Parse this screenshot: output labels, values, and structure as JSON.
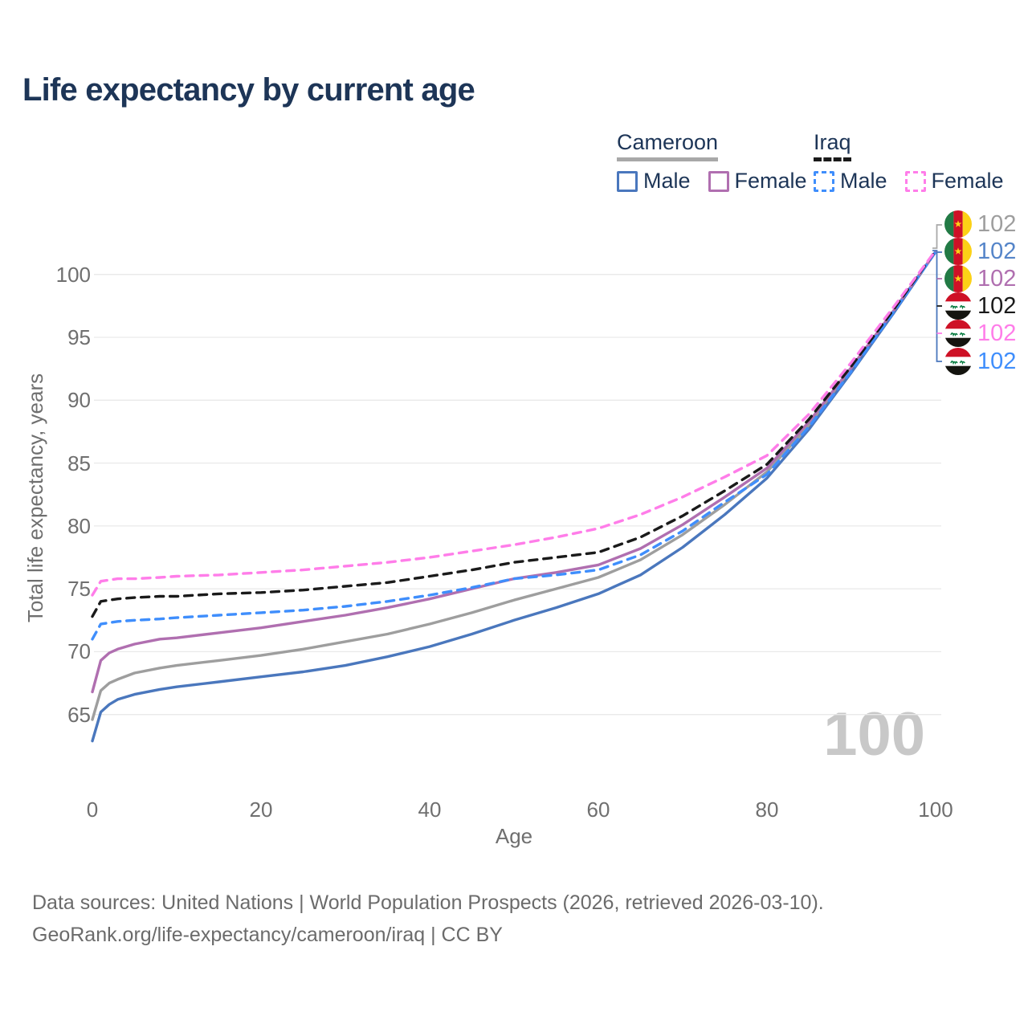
{
  "title": "Life expectancy by current age",
  "legend": {
    "groups": [
      {
        "label": "Cameroon",
        "underline_style": "solid",
        "entries": [
          {
            "label": "Male"
          },
          {
            "label": "Female"
          }
        ]
      },
      {
        "label": "Iraq",
        "underline_style": "dashed",
        "entries": [
          {
            "label": "Male"
          },
          {
            "label": "Female"
          }
        ]
      }
    ]
  },
  "colors": {
    "cameroon_total": "#9e9e9e",
    "cameroon_male": "#4a77bd",
    "cameroon_female": "#b06fb0",
    "iraq_total": "#1a1a1a",
    "iraq_male": "#3f8efc",
    "iraq_female": "#ff7de9",
    "title_text": "#1d3557",
    "axis_text": "#6f6f6f",
    "gridline": "#e9e9e9",
    "watermark": "#c8c8c8"
  },
  "age_indicator": "100",
  "end_labels": [
    {
      "country": "cameroon",
      "series": "Cameroon total",
      "value": "102",
      "color": "#9e9e9e"
    },
    {
      "country": "cameroon",
      "series": "Cameroon male",
      "value": "102",
      "color": "#5585c9"
    },
    {
      "country": "cameroon",
      "series": "Cameroon female",
      "value": "102",
      "color": "#b06fb0"
    },
    {
      "country": "iraq",
      "series": "Iraq total",
      "value": "102",
      "color": "#1a1a1a"
    },
    {
      "country": "iraq",
      "series": "Iraq female",
      "value": "102",
      "color": "#ff7de9"
    },
    {
      "country": "iraq",
      "series": "Iraq male",
      "value": "102",
      "color": "#3f8efc"
    }
  ],
  "footer": {
    "line1": "Data sources: United Nations | World Population Prospects (2026, retrieved 2026-03-10).",
    "line2": "GeoRank.org/life-expectancy/cameroon/iraq | CC BY"
  },
  "chart_data": {
    "type": "line",
    "title": "Life expectancy by current age",
    "xlabel": "Age",
    "ylabel": "Total life expectancy, years",
    "xticks": [
      0,
      20,
      40,
      60,
      80,
      100
    ],
    "yticks": [
      100,
      95,
      90,
      85,
      80,
      75,
      70,
      65
    ],
    "xlim": [
      0,
      100
    ],
    "ylim": [
      61.5,
      103.5
    ],
    "grid": "horizontal-only",
    "legend_position": "top-right",
    "x": [
      0,
      1,
      2,
      3,
      5,
      8,
      10,
      15,
      20,
      25,
      30,
      35,
      40,
      45,
      50,
      55,
      60,
      65,
      70,
      75,
      80,
      85,
      90,
      95,
      100
    ],
    "series": [
      {
        "id": "cameroon-total",
        "name": "Cameroon (both sexes)",
        "country": "Cameroon",
        "sex": "total",
        "style": "solid",
        "color": "#9e9e9e",
        "y": [
          64.6,
          66.9,
          67.5,
          67.8,
          68.3,
          68.7,
          68.9,
          69.3,
          69.7,
          70.2,
          70.8,
          71.4,
          72.2,
          73.1,
          74.1,
          75.0,
          75.9,
          77.3,
          79.3,
          81.7,
          84.3,
          88.0,
          92.4,
          97.0,
          101.8
        ]
      },
      {
        "id": "cameroon-male",
        "name": "Cameroon Male",
        "country": "Cameroon",
        "sex": "male",
        "style": "solid",
        "color": "#4a77bd",
        "y": [
          62.9,
          65.2,
          65.8,
          66.2,
          66.6,
          67.0,
          67.2,
          67.6,
          68.0,
          68.4,
          68.9,
          69.6,
          70.4,
          71.4,
          72.5,
          73.5,
          74.6,
          76.1,
          78.3,
          80.9,
          83.8,
          87.7,
          92.2,
          96.9,
          101.8
        ]
      },
      {
        "id": "cameroon-female",
        "name": "Cameroon Female",
        "country": "Cameroon",
        "sex": "female",
        "style": "solid",
        "color": "#b06fb0",
        "y": [
          66.8,
          69.3,
          69.9,
          70.2,
          70.6,
          71.0,
          71.1,
          71.5,
          71.9,
          72.4,
          72.9,
          73.5,
          74.2,
          75.0,
          75.8,
          76.3,
          76.9,
          78.2,
          80.1,
          82.3,
          84.6,
          88.3,
          92.6,
          97.1,
          101.8
        ]
      },
      {
        "id": "iraq-male",
        "name": "Iraq Male",
        "country": "Iraq",
        "sex": "male",
        "style": "dashed",
        "color": "#3f8efc",
        "y": [
          71.0,
          72.2,
          72.3,
          72.4,
          72.5,
          72.6,
          72.7,
          72.9,
          73.1,
          73.3,
          73.6,
          74.0,
          74.5,
          75.1,
          75.8,
          76.1,
          76.5,
          77.7,
          79.6,
          81.9,
          84.1,
          87.9,
          92.3,
          97.0,
          101.8
        ]
      },
      {
        "id": "iraq-total",
        "name": "Iraq (both sexes)",
        "country": "Iraq",
        "sex": "total",
        "style": "dashed",
        "color": "#1a1a1a",
        "y": [
          72.8,
          74.0,
          74.1,
          74.2,
          74.3,
          74.4,
          74.4,
          74.6,
          74.7,
          74.9,
          75.2,
          75.5,
          76.0,
          76.5,
          77.1,
          77.5,
          77.9,
          79.1,
          80.8,
          82.8,
          84.9,
          88.5,
          92.7,
          97.2,
          101.9
        ]
      },
      {
        "id": "iraq-female",
        "name": "Iraq Female",
        "country": "Iraq",
        "sex": "female",
        "style": "dashed",
        "color": "#ff7de9",
        "y": [
          74.5,
          75.6,
          75.7,
          75.8,
          75.8,
          75.9,
          76.0,
          76.1,
          76.3,
          76.5,
          76.8,
          77.1,
          77.5,
          78.0,
          78.5,
          79.1,
          79.8,
          80.9,
          82.3,
          83.9,
          85.6,
          88.9,
          93.0,
          97.4,
          101.9
        ]
      }
    ]
  }
}
